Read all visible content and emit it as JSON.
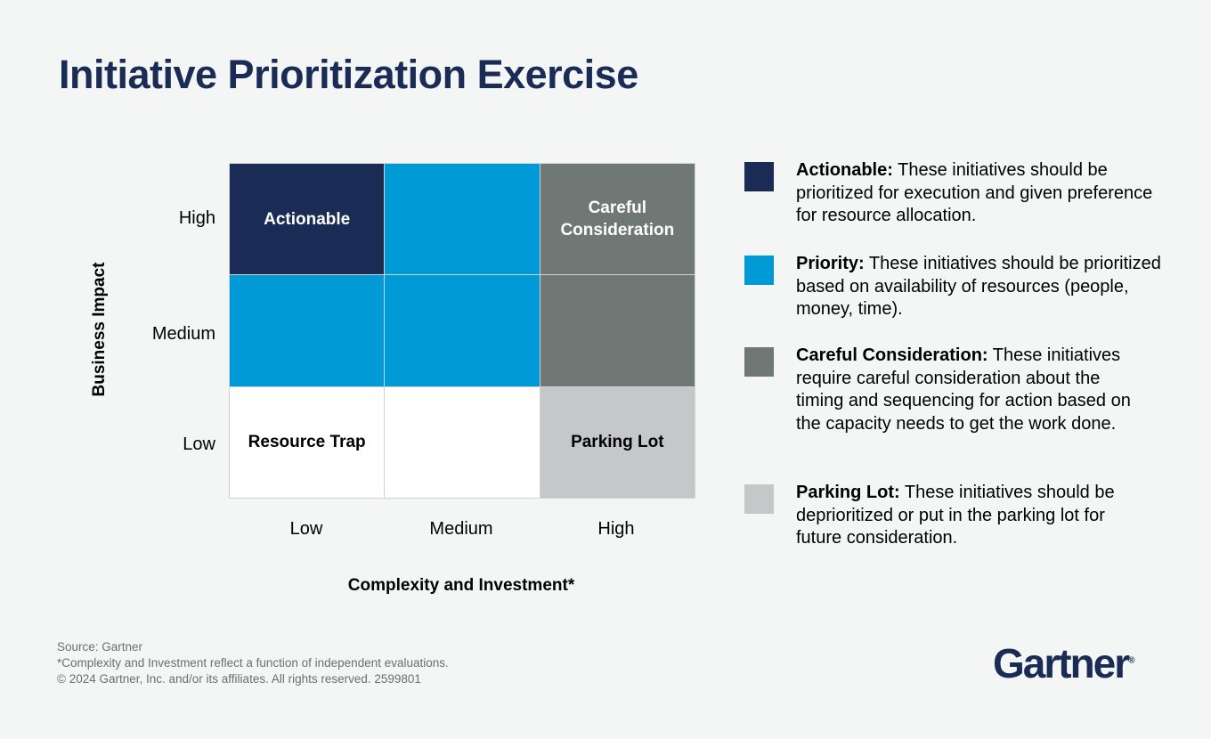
{
  "title": "Initiative Prioritization Exercise",
  "matrix": {
    "y_axis_title": "Business Impact",
    "x_axis_title": "Complexity and Investment*",
    "y_labels": [
      "High",
      "Medium",
      "Low"
    ],
    "x_labels": [
      "Low",
      "Medium",
      "High"
    ],
    "cells": [
      [
        {
          "label": "Actionable",
          "color": "#1a2b55"
        },
        {
          "label": "",
          "color": "#009ad7"
        },
        {
          "label": "Careful Consideration",
          "color": "#6f7874"
        }
      ],
      [
        {
          "label": "",
          "color": "#009ad7"
        },
        {
          "label": "",
          "color": "#009ad7"
        },
        {
          "label": "",
          "color": "#6f7874"
        }
      ],
      [
        {
          "label": "Resource Trap",
          "color": "#ffffff"
        },
        {
          "label": "",
          "color": "#ffffff"
        },
        {
          "label": "Parking Lot",
          "color": "#c5c8c9"
        }
      ]
    ]
  },
  "legend": [
    {
      "term": "Actionable:",
      "text": " These initiatives should be prioritized for execution and given preference for resource allocation.",
      "color": "#1a2b55"
    },
    {
      "term": "Priority:",
      "text": " These initiatives should be prioritized based on availability of resources (people, money, time).",
      "color": "#009ad7"
    },
    {
      "term": "Careful Consideration:",
      "text": " These initiatives require careful consideration about the timing and sequencing for action based on the capacity needs to get the work done.",
      "color": "#6f7874"
    },
    {
      "term": "Parking Lot:",
      "text": " These initiatives should be deprioritized or put in the parking lot for future consideration.",
      "color": "#c5c8c9"
    }
  ],
  "footer": {
    "source": "Source: Gartner",
    "note": "*Complexity and Investment reflect a function of independent evaluations.",
    "copyright": "© 2024 Gartner, Inc. and/or its affiliates. All rights reserved. 2599801"
  },
  "logo": "Gartner"
}
